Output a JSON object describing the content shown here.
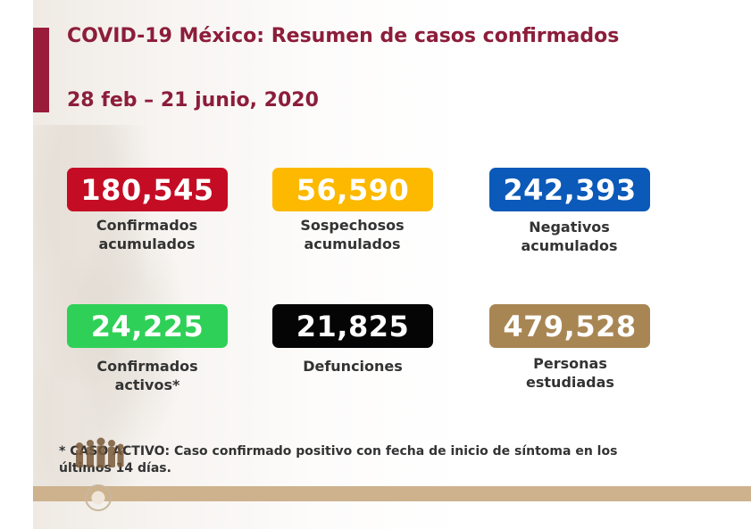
{
  "header": {
    "title": "COVID-19 México: Resumen de casos confirmados",
    "date_range": "28 feb – 21 junio, 2020"
  },
  "stats": [
    {
      "value": "180,545",
      "label": "Confirmados acumulados",
      "color": "#c40d24"
    },
    {
      "value": "56,590",
      "label": "Sospechosos acumulados",
      "color": "#fcb900"
    },
    {
      "value": "242,393",
      "label": "Negativos acumulados",
      "color": "#0b59b9"
    },
    {
      "value": "24,225",
      "label": "Confirmados activos*",
      "color": "#2fd057"
    },
    {
      "value": "21,825",
      "label": "Defunciones",
      "color": "#050505"
    },
    {
      "value": "479,528",
      "label": "Personas estudiadas",
      "color": "#a88654"
    }
  ],
  "footnote": "* CASO ACTIVO: Caso confirmado positivo con fecha de inicio de síntoma en los últimos 14 días.",
  "colors": {
    "accent": "#9b1c3a",
    "title_text": "#8c1d3a",
    "footer_bar": "#cdb28d"
  }
}
